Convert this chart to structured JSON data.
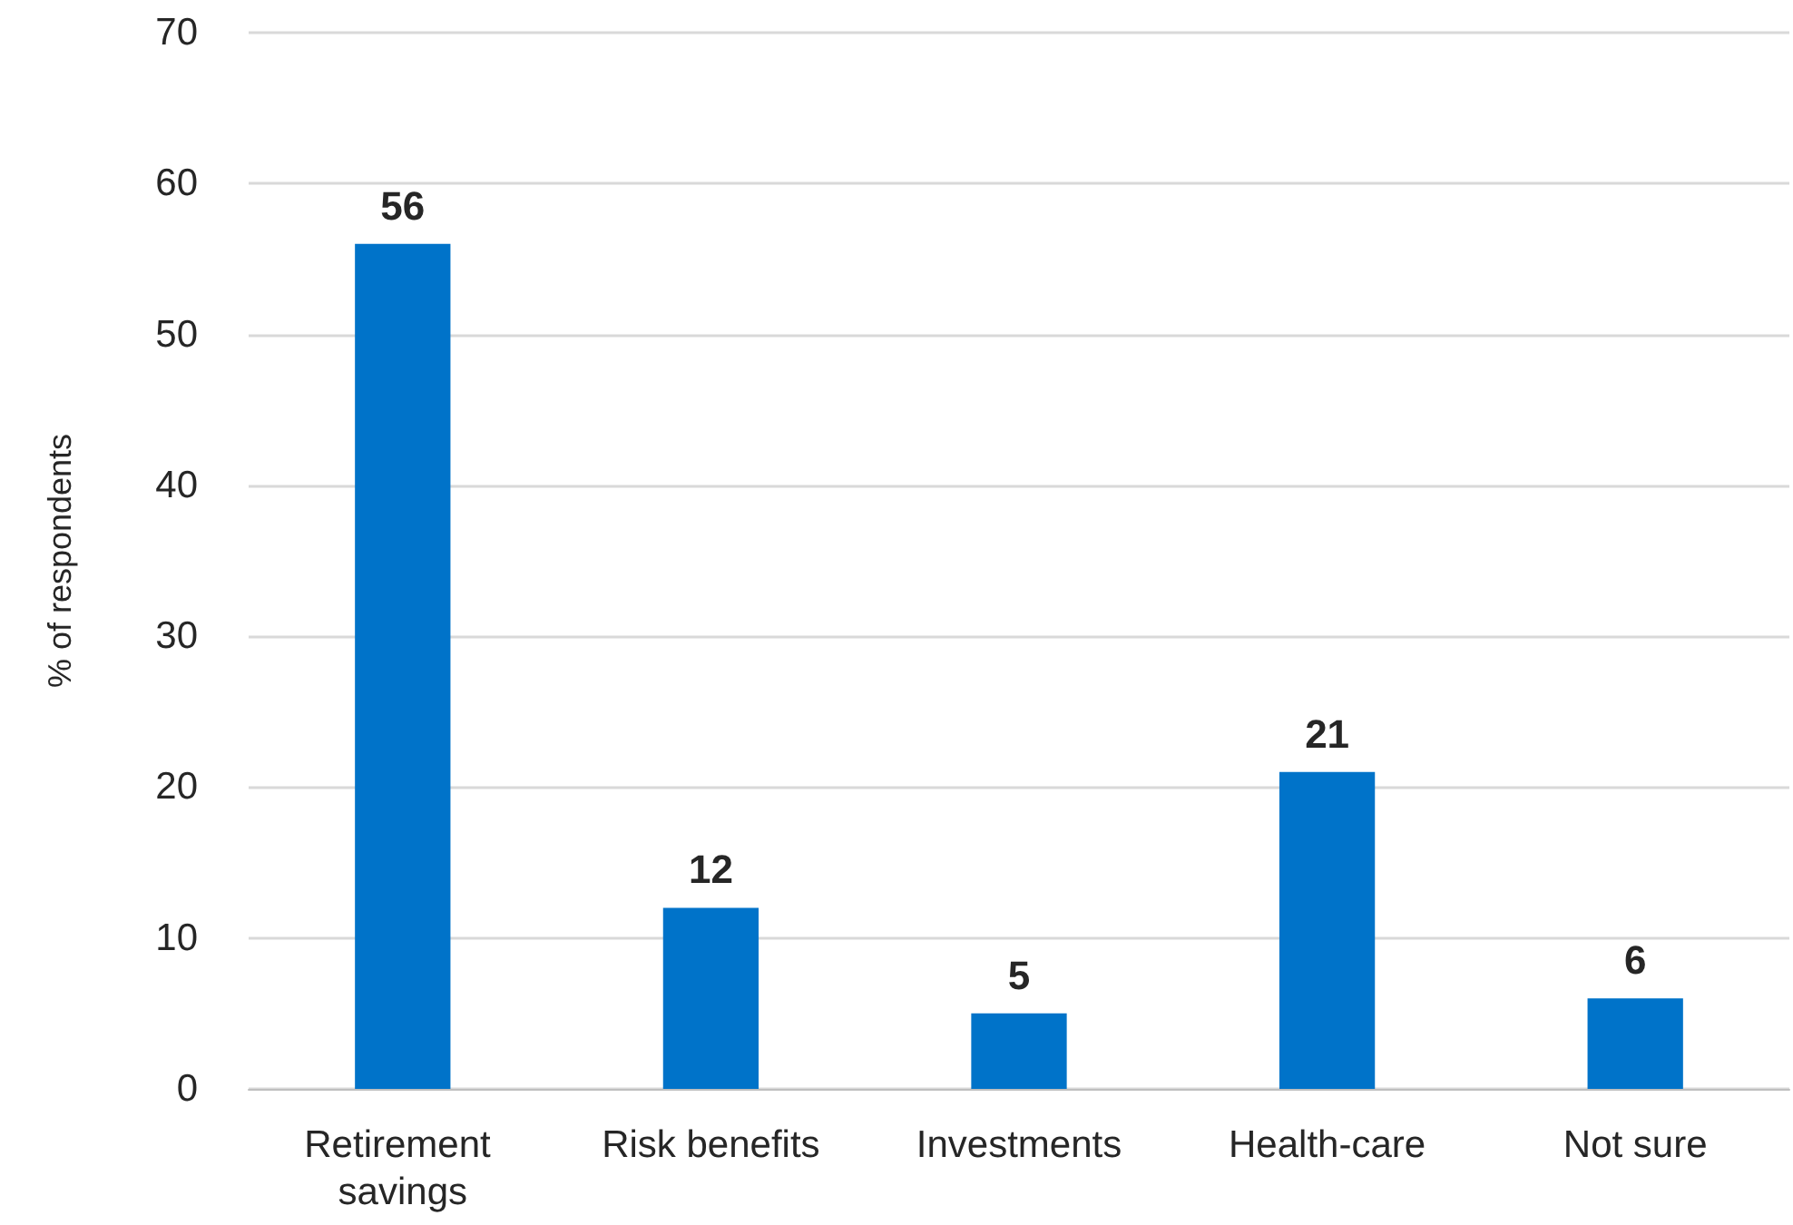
{
  "chart_data": {
    "type": "bar",
    "ylabel": "% of respondents",
    "categories": [
      "Retirement savings",
      "Risk benefits",
      "Investments",
      "Health-care",
      "Not sure"
    ],
    "values": [
      56,
      12,
      5,
      21,
      6
    ],
    "color": "#0073c9",
    "ylim": [
      0,
      70
    ],
    "yticks": [
      0,
      10,
      20,
      30,
      40,
      50,
      60,
      70
    ],
    "grid": "y",
    "data_labels": true
  }
}
